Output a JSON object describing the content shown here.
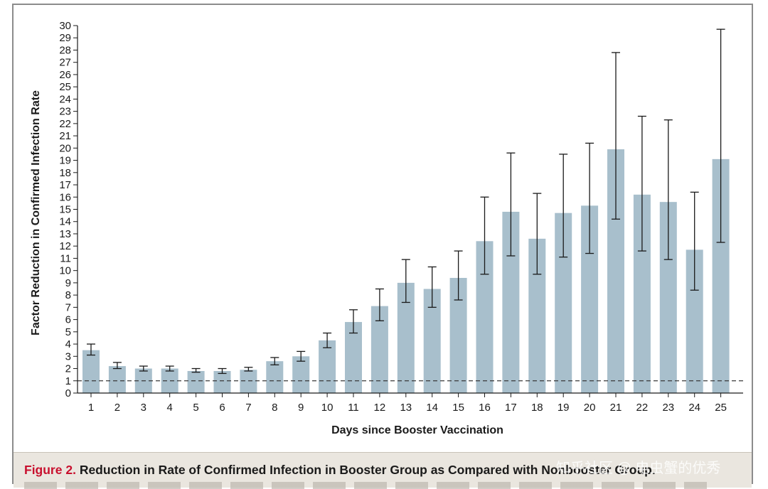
{
  "chart_data": {
    "type": "bar",
    "title": "",
    "xlabel": "Days since Booster Vaccination",
    "ylabel": "Factor Reduction in Confirmed Infection Rate",
    "ylim": [
      0,
      30
    ],
    "yticks": [
      0,
      1,
      2,
      3,
      4,
      5,
      6,
      7,
      8,
      9,
      10,
      11,
      12,
      13,
      14,
      15,
      16,
      17,
      18,
      19,
      20,
      21,
      22,
      23,
      24,
      25,
      26,
      27,
      28,
      29,
      30
    ],
    "categories": [
      "1",
      "2",
      "3",
      "4",
      "5",
      "6",
      "7",
      "8",
      "9",
      "10",
      "11",
      "12",
      "13",
      "14",
      "15",
      "16",
      "17",
      "18",
      "19",
      "20",
      "21",
      "22",
      "23",
      "24",
      "25"
    ],
    "values": [
      3.5,
      2.2,
      2.0,
      2.0,
      1.8,
      1.8,
      1.9,
      2.6,
      3.0,
      4.3,
      5.8,
      7.1,
      9.0,
      8.5,
      9.4,
      12.4,
      14.8,
      12.6,
      14.7,
      15.3,
      19.9,
      16.2,
      15.6,
      11.7,
      19.1
    ],
    "error_low": [
      3.1,
      2.0,
      1.8,
      1.8,
      1.7,
      1.6,
      1.8,
      2.3,
      2.6,
      3.7,
      4.9,
      5.9,
      7.4,
      7.0,
      7.6,
      9.7,
      11.2,
      9.7,
      11.1,
      11.4,
      14.2,
      11.6,
      10.9,
      8.4,
      12.3
    ],
    "error_high": [
      4.0,
      2.5,
      2.2,
      2.2,
      2.0,
      2.0,
      2.1,
      2.9,
      3.4,
      4.9,
      6.8,
      8.5,
      10.9,
      10.3,
      11.6,
      16.0,
      19.6,
      16.3,
      19.5,
      20.4,
      27.8,
      22.6,
      22.3,
      16.4,
      29.7
    ],
    "reference_line": 1,
    "bar_color": "#a8bfcc",
    "error_color": "#1a1a1a"
  },
  "caption": {
    "label": "Figure 2.",
    "text": "Reduction in Rate of Confirmed Infection in Booster Group as Compared with Nonbooster Group."
  },
  "watermark": "知乎社区 @ 电虫蟹的优秀",
  "colors": {
    "frame": "#8c8c8c",
    "caption_bg": "#eae6df",
    "accent": "#c8102e"
  }
}
